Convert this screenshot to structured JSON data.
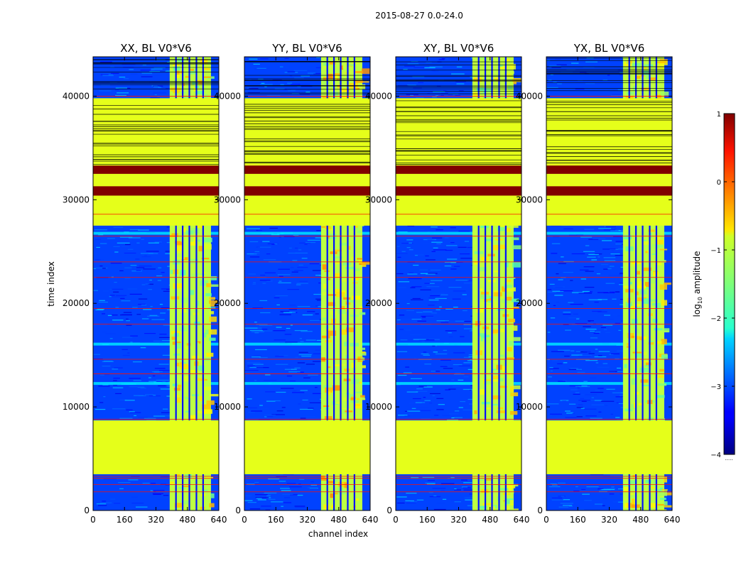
{
  "chart_data": {
    "type": "heatmap",
    "suptitle": "2015-08-27 0.0-24.0",
    "xlabel": "channel index",
    "ylabel": "time index",
    "xlim": [
      0,
      640
    ],
    "ylim": [
      0,
      43800
    ],
    "xticks": [
      0,
      160,
      320,
      480,
      640
    ],
    "yticks": [
      0,
      10000,
      20000,
      30000,
      40000
    ],
    "colormap": "jet",
    "colorbar": {
      "label_prefix": "log",
      "label_sub": "10",
      "label_suffix": " amplitude",
      "range": [
        -4,
        1
      ],
      "ticks": [
        1,
        0,
        -1,
        -2,
        -3,
        -4
      ],
      "tick_labels": [
        "1",
        "0",
        "−1",
        "−2",
        "−3",
        "−4"
      ]
    },
    "panels": [
      {
        "title": "XX, BL V0*V6",
        "pol": "XX"
      },
      {
        "title": "YY, BL V0*V6",
        "pol": "YY"
      },
      {
        "title": "XY, BL V0*V6",
        "pol": "XY"
      },
      {
        "title": "YX, BL V0*V6",
        "pol": "YX"
      }
    ],
    "regions": [
      {
        "name": "masked block (constant)",
        "t_start": 3500,
        "t_end": 8700,
        "log_amplitude": -1.0
      },
      {
        "name": "masked block (constant, with flagged rows)",
        "t_start": 27500,
        "t_end": 39800,
        "log_amplitude": -1.0
      },
      {
        "name": "saturated rows",
        "t_start": 30400,
        "t_end": 31300,
        "log_amplitude": 1.0
      },
      {
        "name": "saturated rows",
        "t_start": 32500,
        "t_end": 33300,
        "log_amplitude": 1.0
      }
    ],
    "signal_channel_band": [
      390,
      600
    ],
    "background_log_amplitude": -3.0
  },
  "hidden_marker": "....."
}
